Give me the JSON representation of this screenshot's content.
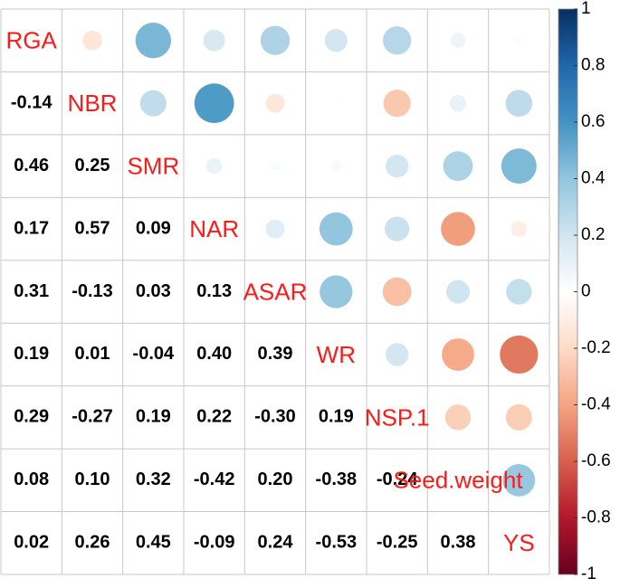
{
  "chart_data": {
    "type": "corrplot",
    "variables": [
      "RGA",
      "NBR",
      "SMR",
      "NAR",
      "ASAR",
      "WR",
      "NSP.1",
      "Seed.weight",
      "YS"
    ],
    "values": [
      [
        -0.14
      ],
      [
        0.46,
        0.25
      ],
      [
        0.17,
        0.57,
        0.09
      ],
      [
        0.31,
        -0.13,
        0.03,
        0.13
      ],
      [
        0.19,
        0.01,
        -0.04,
        0.4,
        0.39
      ],
      [
        0.29,
        -0.27,
        0.19,
        0.22,
        -0.3,
        0.19
      ],
      [
        0.08,
        0.1,
        0.32,
        -0.42,
        0.2,
        -0.38,
        -0.24
      ],
      [
        0.02,
        0.26,
        0.45,
        -0.09,
        0.24,
        -0.53,
        -0.25,
        0.38
      ]
    ],
    "value_labels": [
      [
        "-0.14"
      ],
      [
        "0.46",
        "0.25"
      ],
      [
        "0.17",
        "0.57",
        "0.09"
      ],
      [
        "0.31",
        "-0.13",
        "0.03",
        "0.13"
      ],
      [
        "0.19",
        "0.01",
        "-0.04",
        "0.40",
        "0.39"
      ],
      [
        "0.29",
        "-0.27",
        "0.19",
        "0.22",
        "-0.30",
        "0.19"
      ],
      [
        "0.08",
        "0.10",
        "0.32",
        "-0.42",
        "0.20",
        "-0.38",
        "-0.24"
      ],
      [
        "0.02",
        "0.26",
        "0.45",
        "-0.09",
        "0.24",
        "-0.53",
        "-0.25",
        "0.38"
      ]
    ],
    "clim": [
      -1,
      1
    ],
    "cticks": [
      1,
      0.8,
      0.6,
      0.4,
      0.2,
      0,
      -0.2,
      -0.4,
      -0.6,
      -0.8,
      -1
    ],
    "palette": [
      "#67001F",
      "#B2182B",
      "#D6604D",
      "#F4A582",
      "#FDDBC7",
      "#FFFFFF",
      "#D1E5F0",
      "#92C5DE",
      "#4393C3",
      "#2166AC",
      "#053061"
    ]
  }
}
